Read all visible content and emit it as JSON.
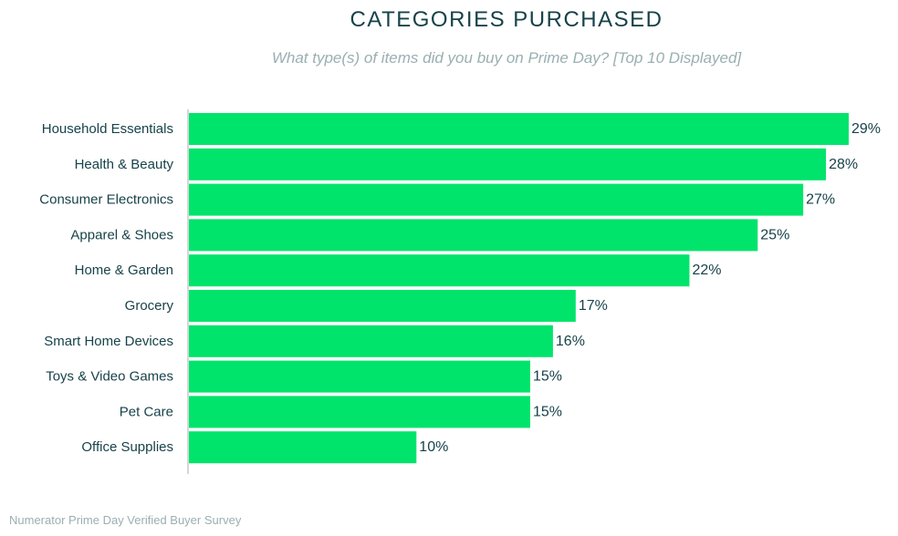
{
  "header": {
    "title": "CATEGORIES PURCHASED",
    "subtitle": "What type(s) of items did you buy on Prime Day? [Top 10 Displayed]"
  },
  "footer": {
    "source": "Numerator Prime Day Verified Buyer Survey"
  },
  "colors": {
    "bar": "#00e46b",
    "text": "#17424a",
    "muted": "#9aafb1",
    "axis": "#c8c8c8"
  },
  "chart_data": {
    "type": "bar",
    "orientation": "horizontal",
    "title": "CATEGORIES PURCHASED",
    "subtitle": "What type(s) of items did you buy on Prime Day? [Top 10 Displayed]",
    "xlabel": "",
    "ylabel": "",
    "xlim": [
      0,
      29
    ],
    "grid": false,
    "categories": [
      "Household Essentials",
      "Health & Beauty",
      "Consumer Electronics",
      "Apparel & Shoes",
      "Home & Garden",
      "Grocery",
      "Smart Home Devices",
      "Toys & Video Games",
      "Pet Care",
      "Office Supplies"
    ],
    "values": [
      29,
      28,
      27,
      25,
      22,
      17,
      16,
      15,
      15,
      10
    ],
    "data_labels": [
      "29%",
      "28%",
      "27%",
      "25%",
      "22%",
      "17%",
      "16%",
      "15%",
      "15%",
      "10%"
    ]
  }
}
